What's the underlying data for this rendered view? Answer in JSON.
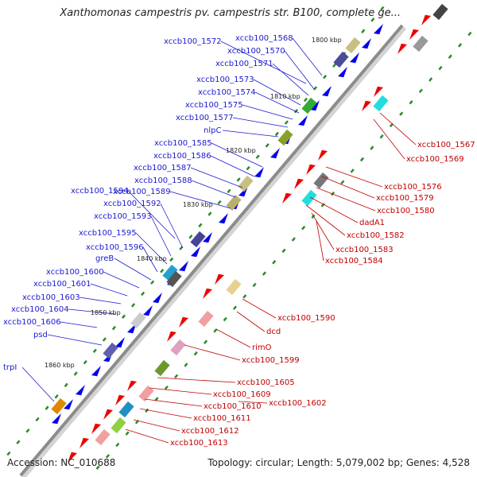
{
  "title": "Xanthomonas campestris pv. campestris str. B100, complete ge...",
  "footer": {
    "accession": "Accession: NC_010688",
    "topology": "Topology: circular; Length: 5,079,002 bp; Genes: 4,528"
  },
  "colors": {
    "forward_label": "#1a1ad0",
    "reverse_label": "#c00000",
    "forward_gene": "#0000ee",
    "reverse_gene": "#ee0000",
    "backbone": "#9a9a9a",
    "tick": "#2a8a2a"
  },
  "kbp_marks": [
    "1800 kbp",
    "1810 kbp",
    "1820 kbp",
    "1830 kbp",
    "1840 kbp",
    "1850 kbp",
    "1860 kbp"
  ],
  "forward_labels": [
    "xccb100_1572",
    "xccb100_1568",
    "xccb100_1570",
    "xccb100_1571",
    "xccb100_1573",
    "xccb100_1574",
    "xccb100_1575",
    "xccb100_1577",
    "nlpC",
    "xccb100_1585",
    "xccb100_1586",
    "xccb100_1587",
    "xccb100_1588",
    "xccb100_1594",
    "xccb100_1589",
    "xccb100_1592",
    "xccb100_1593",
    "xccb100_1595",
    "xccb100_1596",
    "greB",
    "xccb100_1600",
    "xccb100_1601",
    "xccb100_1603",
    "xccb100_1604",
    "xccb100_1606",
    "psd",
    "trpI"
  ],
  "reverse_labels": [
    "xccb100_1567",
    "xccb100_1569",
    "xccb100_1576",
    "xccb100_1579",
    "xccb100_1580",
    "dadA1",
    "xccb100_1582",
    "xccb100_1583",
    "xccb100_1584",
    "xccb100_1590",
    "dcd",
    "rimO",
    "xccb100_1599",
    "xccb100_1605",
    "xccb100_1609",
    "xccb100_1602",
    "xccb100_1610",
    "xccb100_1611",
    "xccb100_1612",
    "xccb100_1613"
  ]
}
